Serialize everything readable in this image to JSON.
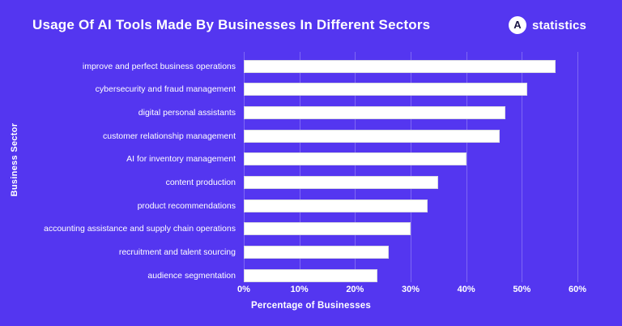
{
  "header": {
    "title": "Usage Of AI Tools Made By Businesses In Different Sectors",
    "logo": {
      "letter": "A",
      "text": "statistics"
    }
  },
  "chart_data": {
    "type": "bar",
    "orientation": "horizontal",
    "title": "Usage Of AI Tools Made By Businesses In Different Sectors",
    "categories": [
      "improve and perfect business operations",
      "cybersecurity and fraud management",
      "digital personal assistants",
      "customer relationship management",
      "AI for inventory management",
      "content production",
      "product recommendations",
      "accounting assistance and supply chain operations",
      "recruitment and talent sourcing",
      "audience segmentation"
    ],
    "values": [
      56,
      51,
      47,
      46,
      40,
      35,
      33,
      30,
      26,
      24
    ],
    "xlabel": "Percentage of Businesses",
    "ylabel": "Business Sector",
    "xlim": [
      0,
      60
    ],
    "xtick_labels": [
      "0%",
      "10%",
      "20%",
      "30%",
      "40%",
      "50%",
      "60%"
    ],
    "xtick_values": [
      0,
      10,
      20,
      30,
      40,
      50,
      60
    ],
    "grid": "vertical",
    "legend": "none",
    "bar_color": "#ffffff",
    "bar_border_color": "#d9d9e3",
    "background_color": "#5436f0",
    "text_color": "#ffffff"
  }
}
